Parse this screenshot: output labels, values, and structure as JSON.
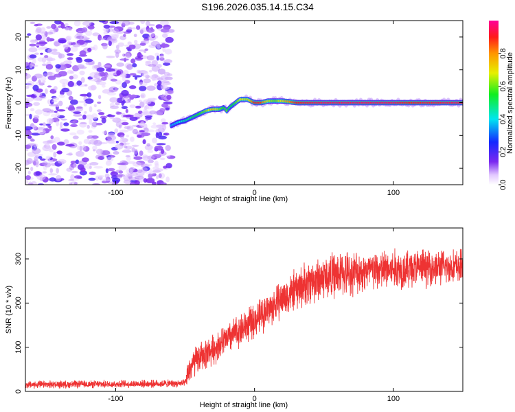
{
  "title": "S196.2026.035.14.15.C34",
  "chart_data": [
    {
      "type": "heatmap",
      "title": "S196.2026.035.14.15.C34",
      "xlabel": "Height of straight line (km)",
      "ylabel": "Frequency (Hz)",
      "xlim": [
        -165,
        150
      ],
      "ylim": [
        -25,
        25
      ],
      "xticks": [
        -100,
        0,
        100
      ],
      "yticks": [
        -20,
        -10,
        0,
        10,
        20
      ],
      "colorbar": {
        "label": "Normalized spectral amplitude",
        "range": [
          0,
          1
        ],
        "ticks": [
          0.0,
          0.2,
          0.4,
          0.6,
          0.8
        ]
      },
      "noise_region_x": [
        -165,
        -60
      ],
      "ridge": {
        "x": [
          -60,
          -55,
          -50,
          -45,
          -40,
          -35,
          -30,
          -25,
          -22,
          -20,
          -18,
          -15,
          -12,
          -10,
          -5,
          0,
          5,
          10,
          15,
          20,
          25,
          30,
          50,
          100,
          110,
          150
        ],
        "frequency": [
          -7,
          -6,
          -5.5,
          -4.5,
          -3.5,
          -2.5,
          -2,
          -2,
          -1.5,
          -2.5,
          -1.5,
          -0.5,
          0.5,
          1,
          1,
          0,
          0,
          0.5,
          0.5,
          0.5,
          0.3,
          0,
          0,
          0,
          0,
          0
        ],
        "amplitude": [
          0.35,
          0.4,
          0.45,
          0.5,
          0.55,
          0.62,
          0.75,
          0.6,
          0.55,
          0.6,
          0.5,
          0.55,
          0.62,
          0.7,
          0.65,
          0.9,
          0.88,
          0.65,
          0.6,
          0.7,
          0.8,
          0.9,
          0.95,
          0.95,
          0.9,
          0.95
        ]
      }
    },
    {
      "type": "line",
      "xlabel": "Height of straight line (km)",
      "ylabel": "SNR (10 * v/v)",
      "xlim": [
        -165,
        150
      ],
      "ylim": [
        0,
        370
      ],
      "xticks": [
        -100,
        0,
        100
      ],
      "yticks": [
        0,
        100,
        200,
        300
      ],
      "series": [
        {
          "name": "SNR",
          "color": "#ee3333",
          "envelope": {
            "x": [
              -165,
              -50,
              -48,
              -45,
              -40,
              -30,
              -20,
              -10,
              0,
              10,
              20,
              30,
              40,
              50,
              60,
              80,
              100,
              120,
              140,
              150
            ],
            "mean": [
              15,
              18,
              40,
              60,
              75,
              95,
              118,
              140,
              160,
              185,
              210,
              230,
              248,
              258,
              265,
              272,
              276,
              280,
              282,
              283
            ],
            "spread": [
              10,
              10,
              35,
              40,
              40,
              40,
              42,
              45,
              45,
              48,
              50,
              55,
              60,
              60,
              60,
              55,
              55,
              50,
              45,
              45
            ]
          }
        }
      ]
    }
  ]
}
